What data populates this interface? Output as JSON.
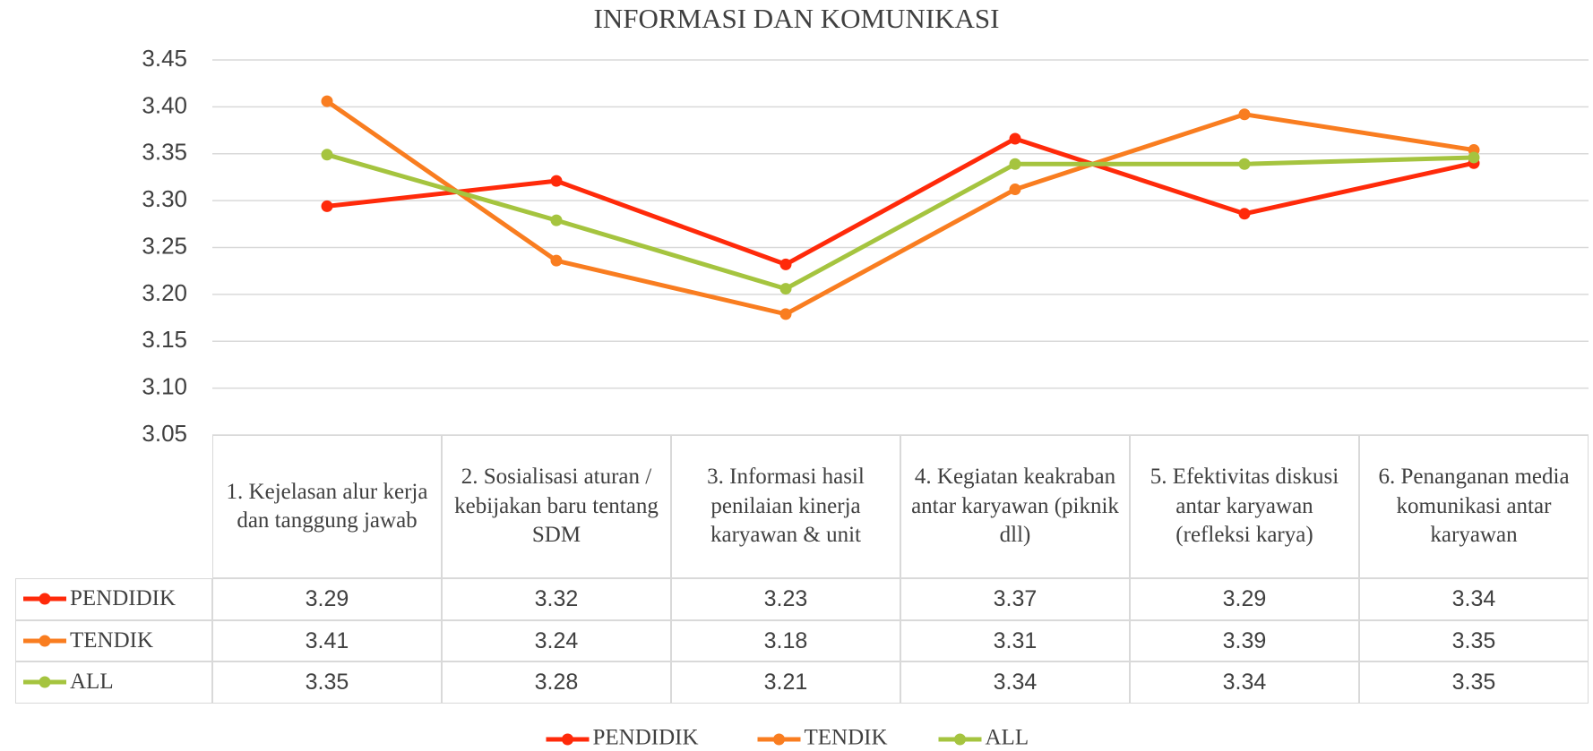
{
  "chart_data": {
    "type": "line",
    "title": "INFORMASI DAN KOMUNIKASI",
    "categories": [
      "1. Kejelasan alur kerja dan tanggung jawab",
      "2. Sosialisasi aturan / kebijakan baru tentang SDM",
      "3. Informasi hasil penilaian kinerja karyawan & unit",
      "4. Kegiatan keakraban antar karyawan (piknik dll)",
      "5. Efektivitas diskusi antar karyawan (refleksi karya)",
      "6. Penanganan media komunikasi antar karyawan"
    ],
    "series": [
      {
        "name": "PENDIDIK",
        "color": "#ff2a0a",
        "values": [
          3.294,
          3.321,
          3.232,
          3.366,
          3.286,
          3.34
        ],
        "value_labels": [
          "3.29",
          "3.32",
          "3.23",
          "3.37",
          "3.29",
          "3.34"
        ]
      },
      {
        "name": "TENDIK",
        "color": "#f97d20",
        "values": [
          3.406,
          3.236,
          3.179,
          3.312,
          3.392,
          3.354
        ],
        "value_labels": [
          "3.41",
          "3.24",
          "3.18",
          "3.31",
          "3.39",
          "3.35"
        ]
      },
      {
        "name": "ALL",
        "color": "#a5c43f",
        "values": [
          3.349,
          3.279,
          3.206,
          3.339,
          3.339,
          3.346
        ],
        "value_labels": [
          "3.35",
          "3.28",
          "3.21",
          "3.34",
          "3.34",
          "3.35"
        ]
      }
    ],
    "ylim": [
      3.05,
      3.45
    ],
    "yticks": [
      {
        "value": 3.05,
        "label": "3.05"
      },
      {
        "value": 3.1,
        "label": "3.10"
      },
      {
        "value": 3.15,
        "label": "3.15"
      },
      {
        "value": 3.2,
        "label": "3.20"
      },
      {
        "value": 3.25,
        "label": "3.25"
      },
      {
        "value": 3.3,
        "label": "3.30"
      },
      {
        "value": 3.35,
        "label": "3.35"
      },
      {
        "value": 3.4,
        "label": "3.40"
      },
      {
        "value": 3.45,
        "label": "3.45"
      }
    ],
    "grid": true,
    "legend": "bottom"
  }
}
